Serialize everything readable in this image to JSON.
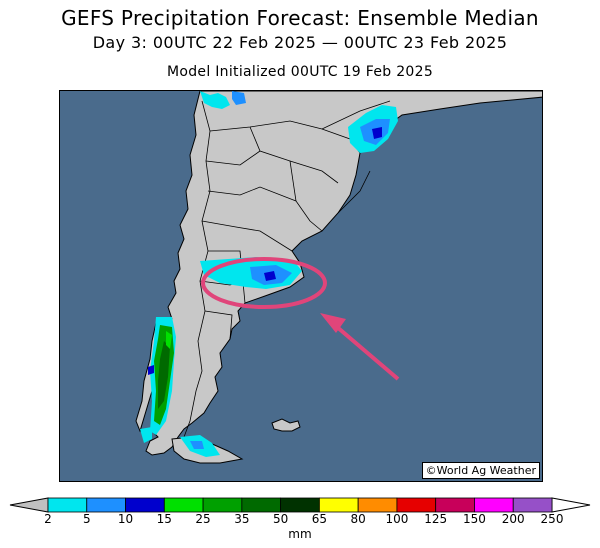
{
  "header": {
    "title": "GEFS Precipitation Forecast: Ensemble Median",
    "period": "Day 3: 00UTC 22 Feb 2025 — 00UTC 23 Feb 2025",
    "init": "Model Initialized 00UTC 19 Feb 2025"
  },
  "map": {
    "credit": "©World Ag Weather",
    "ocean_color": "#4a6b8c",
    "land_color": "#c8c8c8",
    "highlight_color": "#e0457a"
  },
  "colorbar": {
    "units": "mm",
    "ticks": [
      "2",
      "5",
      "10",
      "15",
      "25",
      "35",
      "50",
      "65",
      "80",
      "100",
      "125",
      "150",
      "200",
      "250"
    ],
    "colors": [
      "#00e6ee",
      "#1e90ff",
      "#0000cd",
      "#00e000",
      "#00a000",
      "#006a00",
      "#003200",
      "#ffff00",
      "#ff8c00",
      "#e60000",
      "#c8005a",
      "#ff00ff",
      "#9650c8"
    ]
  }
}
